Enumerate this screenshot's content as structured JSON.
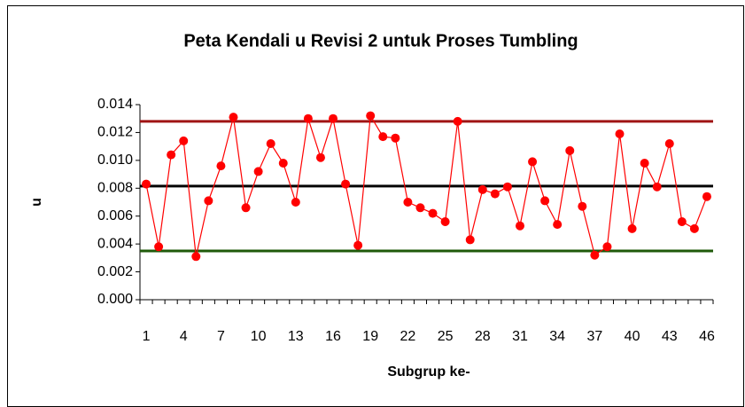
{
  "chart_data": {
    "type": "line",
    "title": "Peta Kendali u Revisi 2 untuk Proses Tumbling",
    "x_label": "Subgrup ke-",
    "y_label": "u",
    "categories": [
      1,
      null,
      null,
      4,
      null,
      null,
      7,
      null,
      null,
      10,
      null,
      null,
      13,
      null,
      null,
      16,
      null,
      null,
      19,
      null,
      null,
      22,
      null,
      null,
      25,
      null,
      null,
      28,
      null,
      null,
      31,
      null,
      null,
      34,
      null,
      null,
      37,
      null,
      null,
      40,
      null,
      null,
      43,
      null,
      null,
      46
    ],
    "series": [
      {
        "color": "#ff0000",
        "values": [
          0.0083,
          0.0038,
          0.0104,
          0.0114,
          0.0031,
          0.0071,
          0.0096,
          0.0131,
          0.0066,
          0.0092,
          0.0112,
          0.0098,
          0.007,
          0.013,
          0.0102,
          0.013,
          0.0083,
          0.0039,
          0.0132,
          0.0117,
          0.0116,
          0.007,
          0.0066,
          0.0062,
          0.0056,
          0.0128,
          0.0043,
          0.0079,
          0.0076,
          0.0081,
          0.0053,
          0.0099,
          0.0071,
          0.0054,
          0.0107,
          0.0067,
          0.0032,
          0.0038,
          0.0119,
          0.0051,
          0.0098,
          0.0081,
          0.0112,
          0.0056,
          0.0051,
          0.0074
        ]
      }
    ],
    "hlines": [
      {
        "value": 0.0128,
        "color": "#a01414"
      },
      {
        "value": 0.00815,
        "color": "#000000"
      },
      {
        "value": 0.0035,
        "color": "#1f5a0a"
      }
    ],
    "ylim": [
      0,
      0.014
    ],
    "yticks": [
      {
        "value": 0,
        "label": "0.000"
      },
      0.002,
      0.004,
      0.006,
      0.008,
      {
        "value": 0.01,
        "label": "0.010"
      },
      0.012,
      0.014
    ],
    "grid": false
  }
}
